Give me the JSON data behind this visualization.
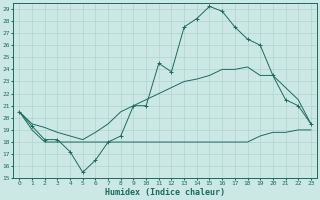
{
  "xlabel": "Humidex (Indice chaleur)",
  "xlim": [
    -0.5,
    23.5
  ],
  "ylim": [
    15,
    29.5
  ],
  "yticks": [
    15,
    16,
    17,
    18,
    19,
    20,
    21,
    22,
    23,
    24,
    25,
    26,
    27,
    28,
    29
  ],
  "xticks": [
    0,
    1,
    2,
    3,
    4,
    5,
    6,
    7,
    8,
    9,
    10,
    11,
    12,
    13,
    14,
    15,
    16,
    17,
    18,
    19,
    20,
    21,
    22,
    23
  ],
  "bg_color": "#cce8e4",
  "line_color": "#1a6b60",
  "grid_color": "#b0d4d0",
  "line1_x": [
    0,
    1,
    2,
    3,
    4,
    5,
    6,
    7,
    8,
    9,
    10,
    11,
    12,
    13,
    14,
    15,
    16,
    17,
    18,
    19,
    20,
    21,
    22,
    23
  ],
  "line1_y": [
    20.5,
    19.3,
    18.2,
    18.2,
    17.2,
    15.5,
    16.5,
    18.0,
    18.5,
    21.0,
    21.0,
    24.5,
    23.8,
    27.5,
    28.2,
    29.2,
    28.8,
    27.5,
    26.5,
    26.0,
    23.5,
    21.5,
    21.0,
    19.5
  ],
  "line2_x": [
    0,
    1,
    2,
    3,
    4,
    5,
    6,
    7,
    8,
    9,
    10,
    11,
    12,
    13,
    14,
    15,
    16,
    17,
    18,
    19,
    20,
    21,
    22,
    23
  ],
  "line2_y": [
    20.5,
    19.0,
    18.0,
    18.0,
    18.0,
    18.0,
    18.0,
    18.0,
    18.0,
    18.0,
    18.0,
    18.0,
    18.0,
    18.0,
    18.0,
    18.0,
    18.0,
    18.0,
    18.0,
    18.5,
    18.8,
    18.8,
    19.0,
    19.0
  ],
  "line3_x": [
    0,
    1,
    2,
    3,
    4,
    5,
    6,
    7,
    8,
    9,
    10,
    11,
    12,
    13,
    14,
    15,
    16,
    17,
    18,
    19,
    20,
    21,
    22,
    23
  ],
  "line3_y": [
    20.5,
    19.5,
    19.2,
    18.8,
    18.5,
    18.2,
    18.8,
    19.5,
    20.5,
    21.0,
    21.5,
    22.0,
    22.5,
    23.0,
    23.2,
    23.5,
    24.0,
    24.0,
    24.2,
    23.5,
    23.5,
    22.5,
    21.5,
    19.5
  ]
}
